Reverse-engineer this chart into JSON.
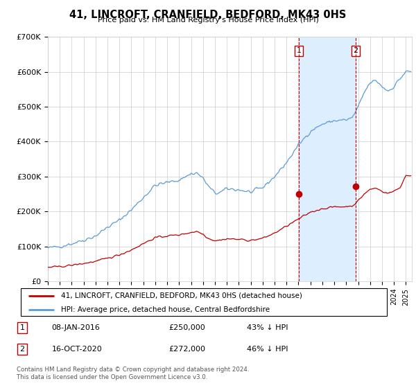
{
  "title": "41, LINCROFT, CRANFIELD, BEDFORD, MK43 0HS",
  "subtitle": "Price paid vs. HM Land Registry's House Price Index (HPI)",
  "ylim": [
    0,
    700000
  ],
  "yticks": [
    0,
    100000,
    200000,
    300000,
    400000,
    500000,
    600000,
    700000
  ],
  "ytick_labels": [
    "£0",
    "£100K",
    "£200K",
    "£300K",
    "£400K",
    "£500K",
    "£600K",
    "£700K"
  ],
  "xlim_start": 1995.0,
  "xlim_end": 2025.5,
  "hpi_color": "#5b9bd5",
  "price_color": "#c00000",
  "shade_color": "#ddeeff",
  "marker1_x": 2016.03,
  "marker1_y": 250000,
  "marker2_x": 2020.79,
  "marker2_y": 272000,
  "legend_line1": "41, LINCROFT, CRANFIELD, BEDFORD, MK43 0HS (detached house)",
  "legend_line2": "HPI: Average price, detached house, Central Bedfordshire",
  "marker1_label": "1",
  "marker1_date": "08-JAN-2016",
  "marker1_price": "£250,000",
  "marker1_text": "43% ↓ HPI",
  "marker2_label": "2",
  "marker2_date": "16-OCT-2020",
  "marker2_price": "£272,000",
  "marker2_text": "46% ↓ HPI",
  "footnote": "Contains HM Land Registry data © Crown copyright and database right 2024.\nThis data is licensed under the Open Government Licence v3.0."
}
